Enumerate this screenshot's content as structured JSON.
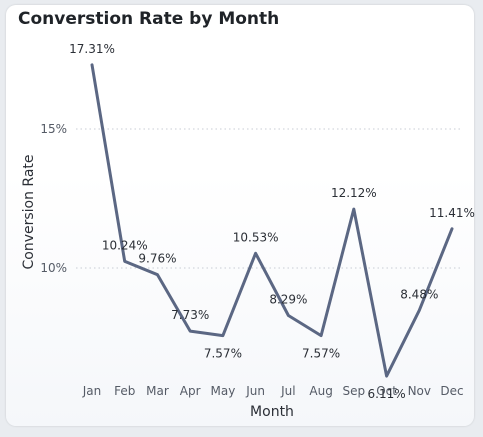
{
  "card": {
    "title": "Converstion Rate by Month"
  },
  "chart_data": {
    "type": "line",
    "title": "Converstion Rate by Month",
    "xlabel": "Month",
    "ylabel": "Conversion Rate",
    "categories": [
      "Jan",
      "Feb",
      "Mar",
      "Apr",
      "May",
      "Jun",
      "Jul",
      "Aug",
      "Sep",
      "Oct",
      "Nov",
      "Dec"
    ],
    "series": [
      {
        "values": [
          17.31,
          10.24,
          9.76,
          7.73,
          7.57,
          10.53,
          8.29,
          7.57,
          12.12,
          6.11,
          8.48,
          11.41
        ],
        "labels": [
          "17.31%",
          "10.24%",
          "9.76%",
          "7.73%",
          "7.57%",
          "10.53%",
          "8.29%",
          "7.57%",
          "12.12%",
          "6.11%",
          "8.48%",
          "11.41%"
        ]
      }
    ],
    "yticks": [
      {
        "value": 10,
        "label": "10%"
      },
      {
        "value": 15,
        "label": "15%"
      }
    ],
    "grid": true,
    "legend": "none",
    "line_color": "#5b6783"
  }
}
